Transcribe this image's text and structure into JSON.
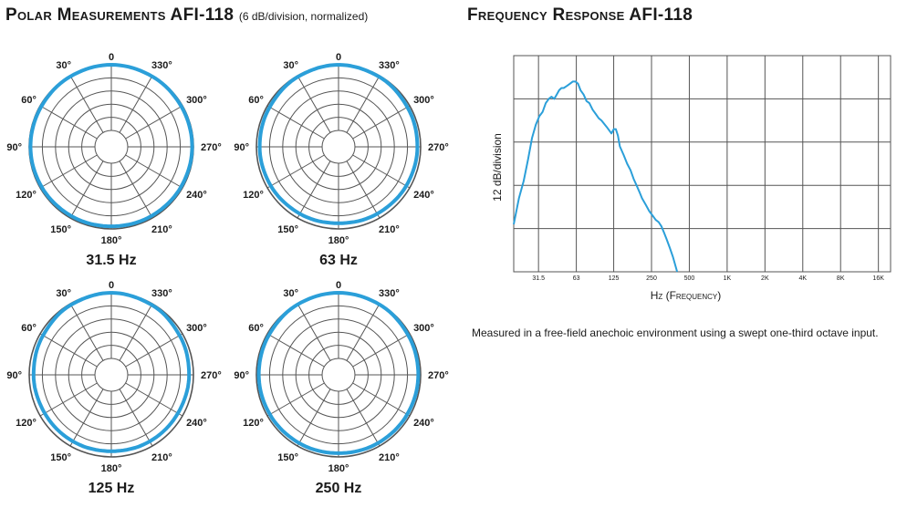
{
  "polar": {
    "title": "Polar Measurements AFI-118",
    "subtitle": "(6 dB/division, normalized)"
  },
  "frequency_response": {
    "title": "Frequency Response AFI-118",
    "caption": "Measured in a free-field anechoic environment using a swept one-third octave input."
  },
  "colors": {
    "trace": "#2b9fd9",
    "grid": "#555555"
  },
  "chart_data": [
    {
      "type": "polar",
      "name": "31.5 Hz",
      "angle_labels": [
        "0",
        "30°",
        "60°",
        "90°",
        "120°",
        "150°",
        "180°",
        "210°",
        "240°",
        "270°",
        "300°",
        "330°"
      ],
      "angles_deg": [
        0,
        30,
        60,
        90,
        120,
        150,
        180,
        210,
        240,
        270,
        300,
        330
      ],
      "level_db": [
        0,
        -0.3,
        -0.6,
        -0.6,
        -0.8,
        -1.0,
        -1.2,
        -1.0,
        -0.8,
        -0.6,
        -0.6,
        -0.3
      ],
      "rings_db_per_division": 6,
      "rings": 5
    },
    {
      "type": "polar",
      "name": "63 Hz",
      "angle_labels": [
        "0",
        "30°",
        "60°",
        "90°",
        "120°",
        "150°",
        "180°",
        "210°",
        "240°",
        "270°",
        "300°",
        "330°"
      ],
      "angles_deg": [
        0,
        30,
        60,
        90,
        120,
        150,
        180,
        210,
        240,
        270,
        300,
        330
      ],
      "level_db": [
        0,
        -0.5,
        -1.2,
        -1.5,
        -1.8,
        -2.2,
        -2.6,
        -2.2,
        -1.8,
        -1.5,
        -1.2,
        -0.5
      ],
      "rings_db_per_division": 6,
      "rings": 5
    },
    {
      "type": "polar",
      "name": "125 Hz",
      "angle_labels": [
        "0",
        "30°",
        "60°",
        "90°",
        "120°",
        "150°",
        "180°",
        "210°",
        "240°",
        "270°",
        "300°",
        "330°"
      ],
      "angles_deg": [
        0,
        30,
        60,
        90,
        120,
        150,
        180,
        210,
        240,
        270,
        300,
        330
      ],
      "level_db": [
        0,
        -0.6,
        -1.5,
        -2.0,
        -2.4,
        -2.4,
        -2.6,
        -2.4,
        -2.4,
        -2.0,
        -1.5,
        -0.6
      ],
      "rings_db_per_division": 6,
      "rings": 5
    },
    {
      "type": "polar",
      "name": "250 Hz",
      "angle_labels": [
        "0",
        "30°",
        "60°",
        "90°",
        "120°",
        "150°",
        "180°",
        "210°",
        "240°",
        "270°",
        "300°",
        "330°"
      ],
      "angles_deg": [
        0,
        30,
        60,
        90,
        120,
        150,
        180,
        210,
        240,
        270,
        300,
        330
      ],
      "level_db": [
        0,
        -0.3,
        -0.9,
        -1.1,
        -1.3,
        -1.5,
        -1.7,
        -1.5,
        -1.3,
        -1.1,
        -0.9,
        -0.3
      ],
      "rings_db_per_division": 6,
      "rings": 5
    },
    {
      "type": "line",
      "xlabel": "Hz (Frequency)",
      "ylabel": "12 dB/division",
      "x_scale": "log",
      "xlim": [
        20,
        20000
      ],
      "x_ticks": [
        31.5,
        63,
        125,
        250,
        500,
        1000,
        2000,
        4000,
        8000,
        16000
      ],
      "x_tick_labels": [
        "31.5",
        "63",
        "125",
        "250",
        "500",
        "1K",
        "2K",
        "4K",
        "8K",
        "16K"
      ],
      "ylim": [
        -48,
        12
      ],
      "y_divisions": 5,
      "grid": true,
      "x": [
        20,
        22,
        24,
        26,
        28,
        30,
        32,
        34,
        36,
        38,
        40,
        42,
        44,
        46,
        48,
        50,
        53,
        56,
        59,
        62,
        65,
        68,
        72,
        76,
        80,
        85,
        90,
        95,
        100,
        110,
        120,
        125,
        130,
        135,
        140,
        150,
        160,
        170,
        180,
        190,
        200,
        210,
        225,
        240,
        255,
        270,
        285,
        300,
        315,
        330,
        350,
        370,
        400
      ],
      "y": [
        -34.8,
        -27.6,
        -22.8,
        -16.8,
        -10.8,
        -7.2,
        -4.8,
        -3.6,
        -1.2,
        0.0,
        0.6,
        0.0,
        1.2,
        2.4,
        3.0,
        3.0,
        3.6,
        4.2,
        4.8,
        4.8,
        4.2,
        2.4,
        1.2,
        -0.6,
        -1.2,
        -3.0,
        -4.2,
        -5.4,
        -6.0,
        -7.8,
        -9.6,
        -8.4,
        -8.4,
        -10.2,
        -13.2,
        -15.6,
        -18.0,
        -19.8,
        -22.2,
        -24.0,
        -25.8,
        -27.6,
        -29.4,
        -31.2,
        -32.4,
        -33.6,
        -34.2,
        -35.4,
        -37.2,
        -39.0,
        -41.4,
        -43.8,
        -48.0
      ]
    }
  ]
}
